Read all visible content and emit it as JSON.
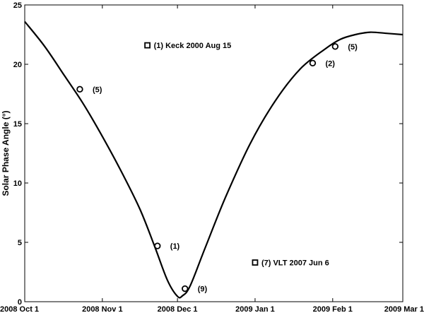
{
  "chart_data": {
    "type": "line",
    "title": "",
    "xlabel": "",
    "ylabel": "Solar Phase Angle (°)",
    "x_ticks": [
      "2008 Oct 1",
      "2008 Nov 1",
      "2008 Dec 1",
      "2009 Jan 1",
      "2009 Feb 1",
      "2009 Mar 1"
    ],
    "x_tick_days": [
      0,
      31,
      61,
      92,
      123,
      151
    ],
    "xlim_days": [
      0,
      151
    ],
    "ylim": [
      0,
      25
    ],
    "y_ticks": [
      0,
      5,
      10,
      15,
      20,
      25
    ],
    "grid": false,
    "series": [
      {
        "days": [
          0,
          8,
          16,
          23,
          30,
          38,
          46,
          52,
          57,
          61,
          63,
          66,
          72,
          80,
          90,
          100,
          110,
          120,
          126,
          132,
          138,
          145,
          151
        ],
        "values": [
          23.6,
          21.5,
          19.0,
          16.8,
          14.3,
          11.2,
          7.8,
          4.6,
          1.8,
          0.45,
          0.5,
          1.3,
          4.5,
          8.7,
          13.3,
          16.9,
          19.6,
          21.3,
          22.1,
          22.5,
          22.7,
          22.6,
          22.5
        ]
      }
    ],
    "observations": [
      {
        "day": 22,
        "value": 17.9,
        "label": "(5)"
      },
      {
        "day": 53,
        "value": 4.7,
        "label": "(1)"
      },
      {
        "day": 64,
        "value": 1.1,
        "label": "(9)"
      },
      {
        "day": 115,
        "value": 20.1,
        "label": "(2)"
      },
      {
        "day": 124,
        "value": 21.5,
        "label": "(5)"
      }
    ],
    "inset_points": [
      {
        "day": 49,
        "value": 21.6,
        "label": "(1) Keck 2000 Aug 15"
      },
      {
        "day": 92,
        "value": 3.3,
        "label": "(7) VLT 2007 Jun 6"
      }
    ]
  }
}
